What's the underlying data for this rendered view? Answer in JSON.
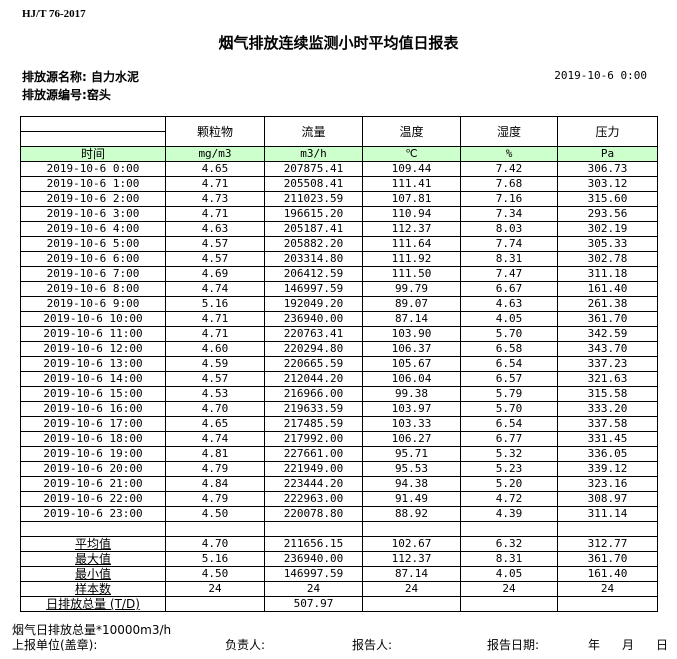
{
  "header": {
    "standard": "HJ/T  76-2017",
    "title": "烟气排放连续监测小时平均值日报表",
    "source_name_label": "排放源名称:",
    "source_name": "自力水泥",
    "source_id_label": "排放源编号:",
    "source_id": "窑头",
    "report_date": "2019-10-6 0:00"
  },
  "table": {
    "columns": [
      "颗粒物",
      "流量",
      "温度",
      "湿度",
      "压力"
    ],
    "time_label": "时间",
    "units": [
      "mg/m3",
      "m3/h",
      "℃",
      "%",
      "Pa"
    ],
    "rows": [
      [
        "2019-10-6 0:00",
        "4.65",
        "207875.41",
        "109.44",
        "7.42",
        "306.73"
      ],
      [
        "2019-10-6 1:00",
        "4.71",
        "205508.41",
        "111.41",
        "7.68",
        "303.12"
      ],
      [
        "2019-10-6 2:00",
        "4.73",
        "211023.59",
        "107.81",
        "7.16",
        "315.60"
      ],
      [
        "2019-10-6 3:00",
        "4.71",
        "196615.20",
        "110.94",
        "7.34",
        "293.56"
      ],
      [
        "2019-10-6 4:00",
        "4.63",
        "205187.41",
        "112.37",
        "8.03",
        "302.19"
      ],
      [
        "2019-10-6 5:00",
        "4.57",
        "205882.20",
        "111.64",
        "7.74",
        "305.33"
      ],
      [
        "2019-10-6 6:00",
        "4.57",
        "203314.80",
        "111.92",
        "8.31",
        "302.78"
      ],
      [
        "2019-10-6 7:00",
        "4.69",
        "206412.59",
        "111.50",
        "7.47",
        "311.18"
      ],
      [
        "2019-10-6 8:00",
        "4.74",
        "146997.59",
        "99.79",
        "6.67",
        "161.40"
      ],
      [
        "2019-10-6 9:00",
        "5.16",
        "192049.20",
        "89.07",
        "4.63",
        "261.38"
      ],
      [
        "2019-10-6 10:00",
        "4.71",
        "236940.00",
        "87.14",
        "4.05",
        "361.70"
      ],
      [
        "2019-10-6 11:00",
        "4.71",
        "220763.41",
        "103.90",
        "5.70",
        "342.59"
      ],
      [
        "2019-10-6 12:00",
        "4.60",
        "220294.80",
        "106.37",
        "6.58",
        "343.70"
      ],
      [
        "2019-10-6 13:00",
        "4.59",
        "220665.59",
        "105.67",
        "6.54",
        "337.23"
      ],
      [
        "2019-10-6 14:00",
        "4.57",
        "212044.20",
        "106.04",
        "6.57",
        "321.63"
      ],
      [
        "2019-10-6 15:00",
        "4.53",
        "216966.00",
        "99.38",
        "5.79",
        "315.58"
      ],
      [
        "2019-10-6 16:00",
        "4.70",
        "219633.59",
        "103.97",
        "5.70",
        "333.20"
      ],
      [
        "2019-10-6 17:00",
        "4.65",
        "217485.59",
        "103.33",
        "6.54",
        "337.58"
      ],
      [
        "2019-10-6 18:00",
        "4.74",
        "217992.00",
        "106.27",
        "6.77",
        "331.45"
      ],
      [
        "2019-10-6 19:00",
        "4.81",
        "227661.00",
        "95.71",
        "5.32",
        "336.05"
      ],
      [
        "2019-10-6 20:00",
        "4.79",
        "221949.00",
        "95.53",
        "5.23",
        "339.12"
      ],
      [
        "2019-10-6 21:00",
        "4.84",
        "223444.20",
        "94.38",
        "5.20",
        "323.16"
      ],
      [
        "2019-10-6 22:00",
        "4.79",
        "222963.00",
        "91.49",
        "4.72",
        "308.97"
      ],
      [
        "2019-10-6 23:00",
        "4.50",
        "220078.80",
        "88.92",
        "4.39",
        "311.14"
      ]
    ],
    "summary": [
      [
        "平均值",
        "4.70",
        "211656.15",
        "102.67",
        "6.32",
        "312.77"
      ],
      [
        "最大值",
        "5.16",
        "236940.00",
        "112.37",
        "8.31",
        "361.70"
      ],
      [
        "最小值",
        "4.50",
        "146997.59",
        "87.14",
        "4.05",
        "161.40"
      ],
      [
        "样本数",
        "24",
        "24",
        "24",
        "24",
        "24"
      ],
      [
        "日排放总量 (T/D)",
        "",
        "507.97",
        "",
        "",
        ""
      ]
    ]
  },
  "footer": {
    "note": "烟气日排放总量*10000m3/h",
    "unit_label": "上报单位(盖章):",
    "responsible_label": "负责人:",
    "reporter_label": "报告人:",
    "date_label": "报告日期:",
    "year": "年",
    "month": "月",
    "day": "日"
  }
}
